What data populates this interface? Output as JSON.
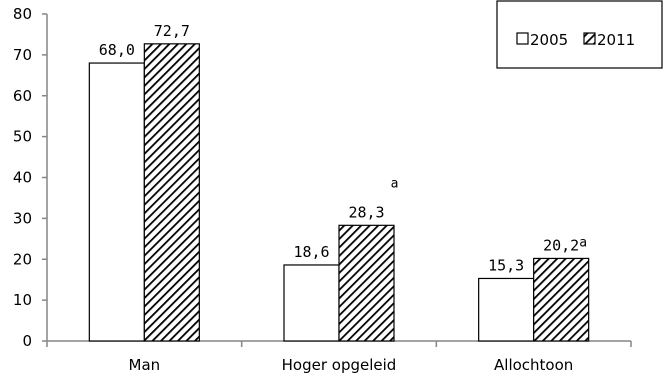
{
  "chart_data": {
    "type": "bar",
    "categories": [
      "Man",
      "Hoger opgeleid",
      "Allochtoon"
    ],
    "series": [
      {
        "name": "2005",
        "values": [
          68.0,
          18.6,
          15.3
        ],
        "labels": [
          "68,0",
          "18,6",
          "15,3"
        ],
        "notes": [
          "",
          "",
          ""
        ],
        "fill": "#ffffff",
        "pattern": "none"
      },
      {
        "name": "2011",
        "values": [
          72.7,
          28.3,
          20.2
        ],
        "labels": [
          "72,7",
          "28,3",
          "20,2"
        ],
        "notes": [
          "",
          "a",
          "a"
        ],
        "fill": "#ffffff",
        "pattern": "diagonal-hatch"
      }
    ],
    "y_ticks": [
      "0",
      "10",
      "20",
      "30",
      "40",
      "50",
      "60",
      "70",
      "80"
    ],
    "ylim": [
      0,
      80
    ],
    "grid": false,
    "legend_position": "top-right",
    "title": "",
    "xlabel": "",
    "ylabel": "",
    "colors": {
      "bar_stroke": "#000000",
      "axis": "#868686",
      "hatch": "#000000"
    }
  }
}
